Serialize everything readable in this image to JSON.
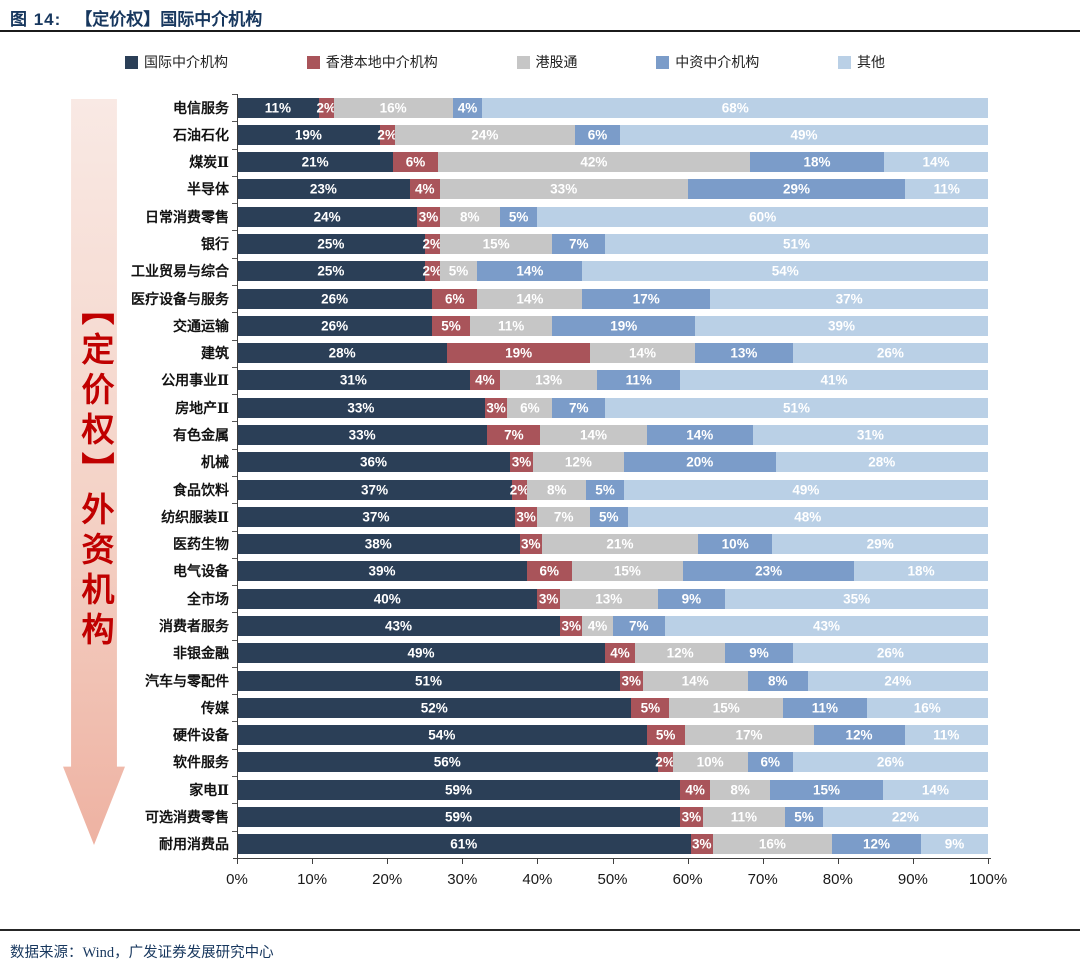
{
  "figure": {
    "label": "图 14:",
    "title": "【定价权】国际中介机构"
  },
  "legend": [
    {
      "label": "国际中介机构",
      "color": "#2b3f57"
    },
    {
      "label": "香港本地中介机构",
      "color": "#a9545a"
    },
    {
      "label": "港股通",
      "color": "#c6c6c6"
    },
    {
      "label": "中资中介机构",
      "color": "#7b9cc9"
    },
    {
      "label": "其他",
      "color": "#bad0e6"
    }
  ],
  "side_arrow": {
    "text": "【定价权】外资机构",
    "text_color": "#c00000"
  },
  "chart_data": {
    "type": "bar",
    "stacked": true,
    "orientation": "horizontal",
    "unit": "%",
    "xlim": [
      0,
      100
    ],
    "x_ticks": [
      "0%",
      "10%",
      "20%",
      "30%",
      "40%",
      "50%",
      "60%",
      "70%",
      "80%",
      "90%",
      "100%"
    ],
    "legend_position": "top",
    "grid": false,
    "categories": [
      "电信服务",
      "石油石化",
      "煤炭Ⅱ",
      "半导体",
      "日常消费零售",
      "银行",
      "工业贸易与综合",
      "医疗设备与服务",
      "交通运输",
      "建筑",
      "公用事业Ⅱ",
      "房地产Ⅱ",
      "有色金属",
      "机械",
      "食品饮料",
      "纺织服装Ⅱ",
      "医药生物",
      "电气设备",
      "全市场",
      "消费者服务",
      "非银金融",
      "汽车与零配件",
      "传媒",
      "硬件设备",
      "软件服务",
      "家电Ⅱ",
      "可选消费零售",
      "耐用消费品"
    ],
    "series": [
      {
        "name": "国际中介机构",
        "color": "#2b3f57",
        "values": [
          11,
          19,
          21,
          23,
          24,
          25,
          25,
          26,
          26,
          28,
          31,
          33,
          33,
          36,
          37,
          37,
          38,
          39,
          40,
          43,
          49,
          51,
          52,
          54,
          56,
          59,
          59,
          61
        ]
      },
      {
        "name": "香港本地中介机构",
        "color": "#a9545a",
        "values": [
          2,
          2,
          6,
          4,
          3,
          2,
          2,
          6,
          5,
          19,
          4,
          3,
          7,
          3,
          2,
          3,
          3,
          6,
          3,
          3,
          4,
          3,
          5,
          5,
          2,
          4,
          3,
          3
        ]
      },
      {
        "name": "港股通",
        "color": "#c6c6c6",
        "values": [
          16,
          24,
          42,
          33,
          8,
          15,
          5,
          14,
          11,
          14,
          13,
          6,
          14,
          12,
          8,
          7,
          21,
          15,
          13,
          4,
          12,
          14,
          15,
          17,
          10,
          8,
          11,
          16
        ]
      },
      {
        "name": "中资中介机构",
        "color": "#7b9cc9",
        "values": [
          4,
          6,
          18,
          29,
          5,
          7,
          14,
          17,
          19,
          13,
          11,
          7,
          14,
          20,
          5,
          5,
          10,
          23,
          9,
          7,
          9,
          8,
          11,
          12,
          6,
          15,
          5,
          12
        ]
      },
      {
        "name": "其他",
        "color": "#bad0e6",
        "values": [
          68,
          49,
          14,
          11,
          60,
          51,
          54,
          37,
          39,
          26,
          41,
          51,
          31,
          28,
          49,
          48,
          29,
          18,
          35,
          43,
          26,
          24,
          16,
          11,
          26,
          14,
          22,
          9
        ]
      }
    ]
  },
  "footer": {
    "source": "数据来源：Wind，广发证券发展研究中心"
  }
}
